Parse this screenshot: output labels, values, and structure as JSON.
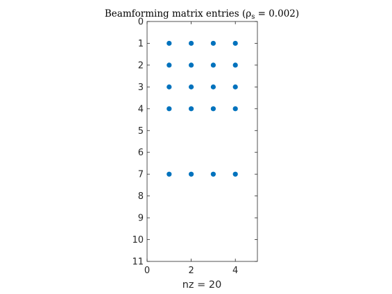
{
  "chart_data": {
    "type": "scatter",
    "title": "Beamforming matrix entries (ρ",
    "title_sub": "s",
    "title_tail": " = 0.002)",
    "xlabel": "nz = 20",
    "ylabel": "",
    "xlim": [
      0,
      5
    ],
    "ylim": [
      0,
      11
    ],
    "y_reversed": true,
    "grid": false,
    "x_ticks": [
      0,
      2,
      4
    ],
    "y_ticks": [
      0,
      1,
      2,
      3,
      4,
      5,
      6,
      7,
      8,
      9,
      10,
      11
    ],
    "marker_color": "#0072BD",
    "axis_color": "#262626",
    "points": [
      {
        "x": 1,
        "y": 1
      },
      {
        "x": 2,
        "y": 1
      },
      {
        "x": 3,
        "y": 1
      },
      {
        "x": 4,
        "y": 1
      },
      {
        "x": 1,
        "y": 2
      },
      {
        "x": 2,
        "y": 2
      },
      {
        "x": 3,
        "y": 2
      },
      {
        "x": 4,
        "y": 2
      },
      {
        "x": 1,
        "y": 3
      },
      {
        "x": 2,
        "y": 3
      },
      {
        "x": 3,
        "y": 3
      },
      {
        "x": 4,
        "y": 3
      },
      {
        "x": 1,
        "y": 4
      },
      {
        "x": 2,
        "y": 4
      },
      {
        "x": 3,
        "y": 4
      },
      {
        "x": 4,
        "y": 4
      },
      {
        "x": 1,
        "y": 7
      },
      {
        "x": 2,
        "y": 7
      },
      {
        "x": 3,
        "y": 7
      },
      {
        "x": 4,
        "y": 7
      }
    ]
  }
}
